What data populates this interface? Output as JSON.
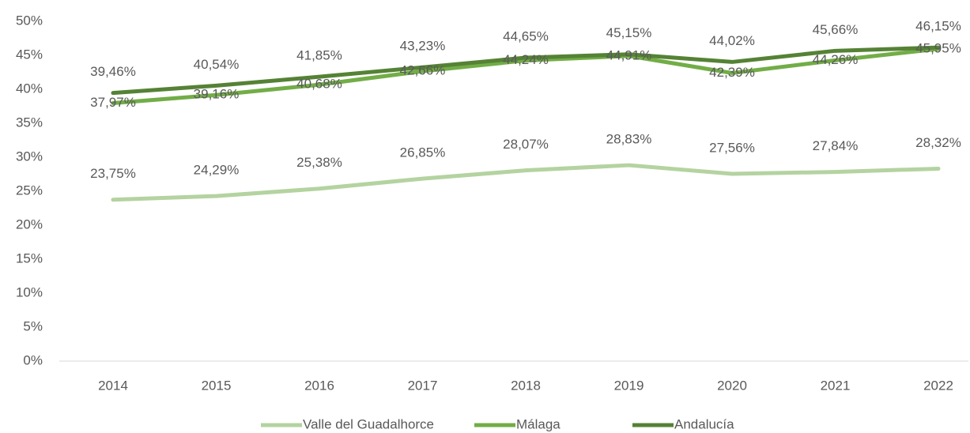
{
  "chart_data": {
    "type": "line",
    "categories": [
      "2014",
      "2015",
      "2016",
      "2017",
      "2018",
      "2019",
      "2020",
      "2021",
      "2022"
    ],
    "series": [
      {
        "name": "Valle del Guadalhorce",
        "color": "#b4d3a0",
        "values": [
          23.75,
          24.29,
          25.38,
          26.85,
          28.07,
          28.83,
          27.56,
          27.84,
          28.32
        ],
        "value_labels": [
          "23,75%",
          "24,29%",
          "25,38%",
          "26,85%",
          "28,07%",
          "28,83%",
          "27,56%",
          "27,84%",
          "28,32%"
        ]
      },
      {
        "name": "Málaga",
        "color": "#72ad47",
        "values": [
          37.97,
          39.16,
          40.68,
          42.66,
          44.24,
          44.91,
          42.39,
          44.26,
          45.95
        ],
        "value_labels": [
          "37,97%",
          "39,16%",
          "40,68%",
          "42,66%",
          "44,24%",
          "44,91%",
          "42,39%",
          "44,26%",
          "45,95%"
        ]
      },
      {
        "name": "Andalucía",
        "color": "#558235",
        "values": [
          39.46,
          40.54,
          41.85,
          43.23,
          44.65,
          45.15,
          44.02,
          45.66,
          46.15
        ],
        "value_labels": [
          "39,46%",
          "40,54%",
          "41,85%",
          "43,23%",
          "44,65%",
          "45,15%",
          "44,02%",
          "45,66%",
          "46,15%"
        ]
      }
    ],
    "ylim": [
      0,
      50
    ],
    "yticks": [
      {
        "value": 0,
        "label": "0%"
      },
      {
        "value": 5,
        "label": "5%"
      },
      {
        "value": 10,
        "label": "10%"
      },
      {
        "value": 15,
        "label": "15%"
      },
      {
        "value": 20,
        "label": "20%"
      },
      {
        "value": 25,
        "label": "25%"
      },
      {
        "value": 30,
        "label": "30%"
      },
      {
        "value": 35,
        "label": "35%"
      },
      {
        "value": 40,
        "label": "40%"
      },
      {
        "value": 45,
        "label": "45%"
      },
      {
        "value": 50,
        "label": "50%"
      }
    ],
    "grid": false,
    "legend": "bottom"
  }
}
